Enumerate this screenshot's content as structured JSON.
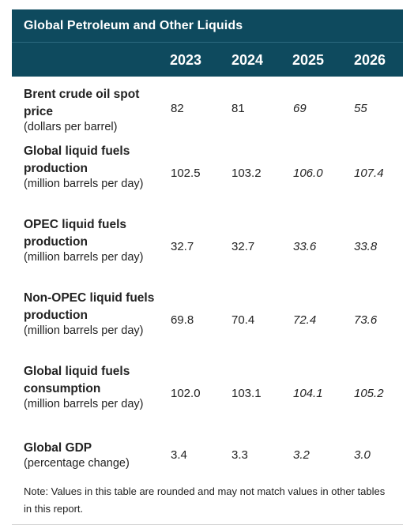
{
  "table": {
    "title": "Global Petroleum and Other Liquids",
    "years": [
      "2023",
      "2024",
      "2025",
      "2026"
    ],
    "projected_years_italic": [
      false,
      false,
      true,
      true
    ],
    "rows": [
      {
        "name": "Brent crude oil spot price",
        "unit": "(dollars per barrel)",
        "values": [
          "82",
          "81",
          "69",
          "55"
        ]
      },
      {
        "name": "Global liquid fuels production",
        "unit": "(million barrels per day)",
        "values": [
          "102.5",
          "103.2",
          "106.0",
          "107.4"
        ]
      },
      {
        "name": "OPEC liquid fuels production",
        "unit": "(million barrels per day)",
        "values": [
          "32.7",
          "32.7",
          "33.6",
          "33.8"
        ]
      },
      {
        "name": "Non-OPEC liquid fuels production",
        "unit": "(million barrels per day)",
        "values": [
          "69.8",
          "70.4",
          "72.4",
          "73.6"
        ]
      },
      {
        "name": "Global liquid fuels consumption",
        "unit": "(million barrels per day)",
        "values": [
          "102.0",
          "103.1",
          "104.1",
          "105.2"
        ]
      },
      {
        "name": "Global GDP",
        "unit": "(percentage change)",
        "values": [
          "3.4",
          "3.3",
          "3.2",
          "3.0"
        ]
      }
    ],
    "note": "Note: Values in this table are rounded and may not match values in other tables in this report."
  },
  "colors": {
    "header_background": "#0e4a5e",
    "header_text": "#ffffff",
    "body_text": "#222222"
  }
}
